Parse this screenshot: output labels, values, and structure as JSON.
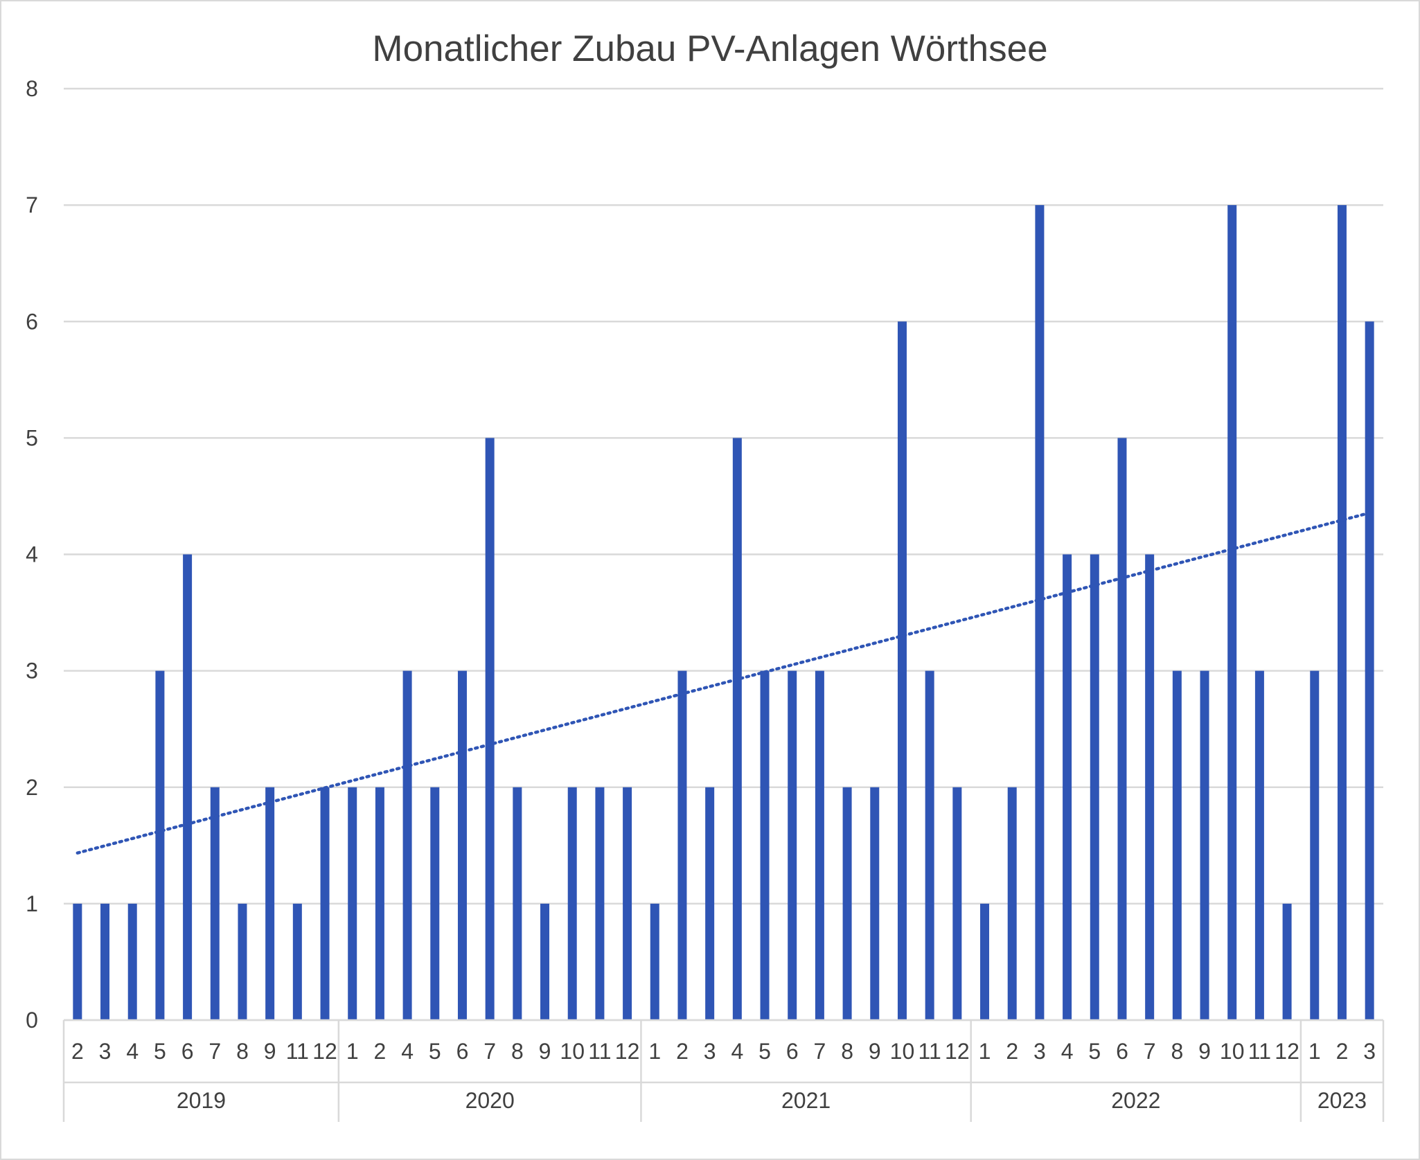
{
  "colors": {
    "bar": "#2F55B5",
    "trendline": "#2F55B5",
    "gridline": "#D9D9D9",
    "axis_line": "#D9D9D9",
    "text": "#404040",
    "border": "#D9D9D9"
  },
  "chart_data": {
    "type": "bar",
    "title": "Monatlicher Zubau PV-Anlagen Wörthsee",
    "xlabel": "",
    "ylabel": "",
    "ylim": [
      0,
      8
    ],
    "y_ticks": [
      "0",
      "1",
      "2",
      "3",
      "4",
      "5",
      "6",
      "7",
      "8"
    ],
    "grid": true,
    "legend": "none",
    "trendline": "linear, dotted",
    "groups": [
      {
        "label": "2019",
        "months": [
          "2",
          "3",
          "4",
          "5",
          "6",
          "7",
          "8",
          "9",
          "11",
          "12"
        ],
        "values": [
          1,
          1,
          1,
          3,
          4,
          2,
          1,
          2,
          1,
          2
        ]
      },
      {
        "label": "2020",
        "months": [
          "1",
          "2",
          "4",
          "5",
          "6",
          "7",
          "8",
          "9",
          "10",
          "11",
          "12"
        ],
        "values": [
          2,
          2,
          3,
          2,
          3,
          5,
          2,
          1,
          2,
          2,
          2
        ]
      },
      {
        "label": "2021",
        "months": [
          "1",
          "2",
          "3",
          "4",
          "5",
          "6",
          "7",
          "8",
          "9",
          "10",
          "11",
          "12"
        ],
        "values": [
          1,
          3,
          2,
          5,
          3,
          3,
          3,
          2,
          2,
          6,
          3,
          2
        ]
      },
      {
        "label": "2022",
        "months": [
          "1",
          "2",
          "3",
          "4",
          "5",
          "6",
          "7",
          "8",
          "9",
          "10",
          "11",
          "12"
        ],
        "values": [
          1,
          2,
          7,
          4,
          4,
          5,
          4,
          3,
          3,
          7,
          3,
          1
        ]
      },
      {
        "label": "2023",
        "months": [
          "1",
          "2",
          "3"
        ],
        "values": [
          3,
          7,
          6
        ]
      }
    ]
  }
}
